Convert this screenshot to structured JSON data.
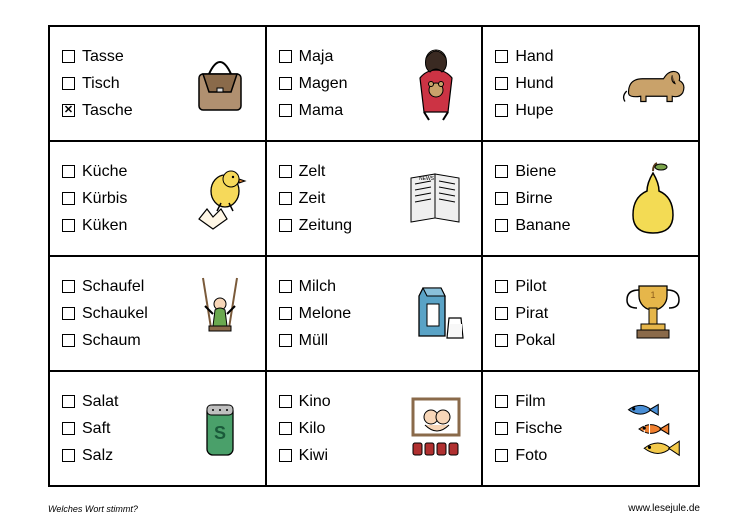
{
  "footer": {
    "left": "Welches Wort stimmt?",
    "right": "www.lesejule.de"
  },
  "cells": [
    {
      "options": [
        {
          "label": "Tasse",
          "checked": false
        },
        {
          "label": "Tisch",
          "checked": false
        },
        {
          "label": "Tasche",
          "checked": true
        }
      ],
      "icon": "bag"
    },
    {
      "options": [
        {
          "label": "Maja",
          "checked": false
        },
        {
          "label": "Magen",
          "checked": false
        },
        {
          "label": "Mama",
          "checked": false
        }
      ],
      "icon": "mama"
    },
    {
      "options": [
        {
          "label": "Hand",
          "checked": false
        },
        {
          "label": "Hund",
          "checked": false
        },
        {
          "label": "Hupe",
          "checked": false
        }
      ],
      "icon": "dog"
    },
    {
      "options": [
        {
          "label": "Küche",
          "checked": false
        },
        {
          "label": "Kürbis",
          "checked": false
        },
        {
          "label": "Küken",
          "checked": false
        }
      ],
      "icon": "chick"
    },
    {
      "options": [
        {
          "label": "Zelt",
          "checked": false
        },
        {
          "label": "Zeit",
          "checked": false
        },
        {
          "label": "Zeitung",
          "checked": false
        }
      ],
      "icon": "newspaper"
    },
    {
      "options": [
        {
          "label": "Biene",
          "checked": false
        },
        {
          "label": "Birne",
          "checked": false
        },
        {
          "label": "Banane",
          "checked": false
        }
      ],
      "icon": "pear"
    },
    {
      "options": [
        {
          "label": "Schaufel",
          "checked": false
        },
        {
          "label": "Schaukel",
          "checked": false
        },
        {
          "label": "Schaum",
          "checked": false
        }
      ],
      "icon": "swing"
    },
    {
      "options": [
        {
          "label": "Milch",
          "checked": false
        },
        {
          "label": "Melone",
          "checked": false
        },
        {
          "label": "Müll",
          "checked": false
        }
      ],
      "icon": "milk"
    },
    {
      "options": [
        {
          "label": "Pilot",
          "checked": false
        },
        {
          "label": "Pirat",
          "checked": false
        },
        {
          "label": "Pokal",
          "checked": false
        }
      ],
      "icon": "trophy"
    },
    {
      "options": [
        {
          "label": "Salat",
          "checked": false
        },
        {
          "label": "Saft",
          "checked": false
        },
        {
          "label": "Salz",
          "checked": false
        }
      ],
      "icon": "salt"
    },
    {
      "options": [
        {
          "label": "Kino",
          "checked": false
        },
        {
          "label": "Kilo",
          "checked": false
        },
        {
          "label": "Kiwi",
          "checked": false
        }
      ],
      "icon": "cinema"
    },
    {
      "options": [
        {
          "label": "Film",
          "checked": false
        },
        {
          "label": "Fische",
          "checked": false
        },
        {
          "label": "Foto",
          "checked": false
        }
      ],
      "icon": "fish"
    }
  ],
  "icons": {
    "colors": {
      "outline": "#000000",
      "bag_body": "#b09070",
      "bag_flap": "#8a6a4a",
      "mama_dress": "#cc3344",
      "mama_hair": "#3a2a22",
      "mama_skin": "#f7d6b8",
      "teddy": "#c9a26a",
      "dog": "#c9a26a",
      "chick": "#f6d95a",
      "egg": "#fff7e6",
      "news": "#efefef",
      "pear": "#f3db54",
      "pear_leaf": "#7aa34a",
      "swing_rope": "#7a5a3a",
      "swing_kid": "#6aa84f",
      "milk_carton": "#5aa3c6",
      "milk_glass": "#ffffff",
      "trophy": "#e6b64a",
      "salt": "#4aa06a",
      "cinema_frame": "#8a6a4a",
      "cinema_seats": "#b03030",
      "fish_blue": "#4a8fd6",
      "fish_orange": "#f08030",
      "fish_yellow": "#f3c94a"
    }
  }
}
